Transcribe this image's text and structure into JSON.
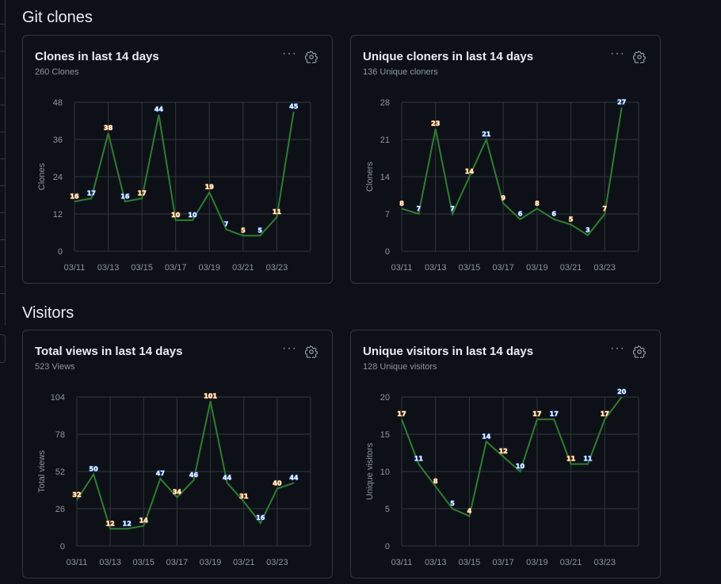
{
  "sections": {
    "git_clones": "Git clones",
    "visitors": "Visitors"
  },
  "colors": {
    "line": "#2f7d32",
    "grid": "#30363d",
    "axis_text": "#8b949e"
  },
  "cards": [
    {
      "title": "Clones in last 14 days",
      "subtitle": "260 Clones",
      "chart_data": {
        "type": "line",
        "ylabel": "Clones",
        "yticks": [
          0,
          12,
          24,
          36,
          48
        ],
        "ylim": [
          0,
          48
        ],
        "x": [
          "03/11",
          "03/12",
          "03/13",
          "03/14",
          "03/15",
          "03/16",
          "03/17",
          "03/18",
          "03/19",
          "03/20",
          "03/21",
          "03/22",
          "03/23",
          "03/24"
        ],
        "xticklabels": [
          "03/11",
          "03/13",
          "03/15",
          "03/17",
          "03/19",
          "03/21",
          "03/23"
        ],
        "values": [
          16,
          17,
          38,
          16,
          17,
          44,
          10,
          10,
          19,
          7,
          5,
          5,
          11,
          45
        ]
      }
    },
    {
      "title": "Unique cloners in last 14 days",
      "subtitle": "136 Unique cloners",
      "chart_data": {
        "type": "line",
        "ylabel": "Cloners",
        "yticks": [
          0,
          7,
          14,
          21,
          28
        ],
        "ylim": [
          0,
          28
        ],
        "x": [
          "03/11",
          "03/12",
          "03/13",
          "03/14",
          "03/15",
          "03/16",
          "03/17",
          "03/18",
          "03/19",
          "03/20",
          "03/21",
          "03/22",
          "03/23",
          "03/24"
        ],
        "xticklabels": [
          "03/11",
          "03/13",
          "03/15",
          "03/17",
          "03/19",
          "03/21",
          "03/23"
        ],
        "values": [
          8,
          7,
          23,
          7,
          14,
          21,
          9,
          6,
          8,
          6,
          5,
          3,
          7,
          27
        ]
      }
    },
    {
      "title": "Total views in last 14 days",
      "subtitle": "523 Views",
      "chart_data": {
        "type": "line",
        "ylabel": "Total views",
        "yticks": [
          0,
          26,
          52,
          78,
          104
        ],
        "ylim": [
          0,
          104
        ],
        "x": [
          "03/11",
          "03/12",
          "03/13",
          "03/14",
          "03/15",
          "03/16",
          "03/17",
          "03/18",
          "03/19",
          "03/20",
          "03/21",
          "03/22",
          "03/23",
          "03/24"
        ],
        "xticklabels": [
          "03/11",
          "03/13",
          "03/15",
          "03/17",
          "03/19",
          "03/21",
          "03/23"
        ],
        "values": [
          32,
          50,
          12,
          12,
          14,
          47,
          34,
          46,
          101,
          44,
          31,
          16,
          40,
          44
        ]
      }
    },
    {
      "title": "Unique visitors in last 14 days",
      "subtitle": "128 Unique visitors",
      "chart_data": {
        "type": "line",
        "ylabel": "Unique visitors",
        "yticks": [
          0,
          5,
          10,
          15,
          20
        ],
        "ylim": [
          0,
          20
        ],
        "x": [
          "03/11",
          "03/12",
          "03/13",
          "03/14",
          "03/15",
          "03/16",
          "03/17",
          "03/18",
          "03/19",
          "03/20",
          "03/21",
          "03/22",
          "03/23",
          "03/24"
        ],
        "xticklabels": [
          "03/11",
          "03/13",
          "03/15",
          "03/17",
          "03/19",
          "03/21",
          "03/23"
        ],
        "values": [
          17,
          11,
          8,
          5,
          4,
          14,
          12,
          10,
          17,
          17,
          11,
          11,
          17,
          20
        ]
      }
    }
  ],
  "more_label": "···"
}
